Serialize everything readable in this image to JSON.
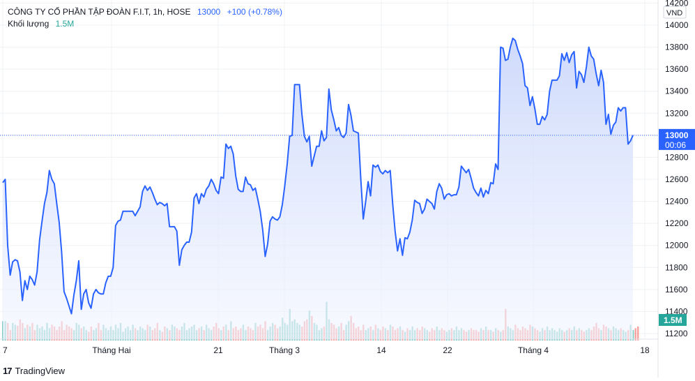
{
  "header": {
    "symbol_title": "CÔNG TY CỔ PHẦN TẬP ĐOÀN F.I.T, 1h, HOSE",
    "last_price": "13000",
    "change": "+100 (+0.78%)",
    "volume_label": "Khối lượng",
    "volume_value": "1.5M"
  },
  "axis": {
    "currency": "VND",
    "price_ticks": [
      "14200",
      "14000",
      "13800",
      "13600",
      "13400",
      "13200",
      "13000",
      "12800",
      "12600",
      "12400",
      "12200",
      "12000",
      "11800",
      "11600",
      "11400",
      "11200"
    ],
    "time_ticks": [
      "7",
      "Tháng Hai",
      "21",
      "Tháng 3",
      "14",
      "22",
      "Tháng 4",
      "18"
    ],
    "last_price_badge": "13000",
    "countdown": "00:06",
    "volume_badge": "1.5M"
  },
  "colors": {
    "line": "#2962ff",
    "area_top": "#c9d6fb",
    "area_bottom": "#f2f5ff",
    "vol_up": "#26a69a",
    "vol_down": "#ef5350",
    "grid": "#eef0f3",
    "badge_price": "#2962ff",
    "badge_volume": "#26a69a"
  },
  "brand": {
    "name": "TradingView"
  },
  "chart_data": {
    "type": "area",
    "ylim": [
      11150,
      14200
    ],
    "price": [
      12570,
      12600,
      12000,
      11730,
      11850,
      11870,
      11860,
      11760,
      11500,
      11680,
      11600,
      11720,
      11690,
      11640,
      11760,
      12050,
      12220,
      12380,
      12480,
      12680,
      12600,
      12560,
      12380,
      12210,
      11940,
      11580,
      11520,
      11450,
      11380,
      11550,
      11680,
      11860,
      11420,
      11560,
      11600,
      11480,
      11430,
      11560,
      11600,
      11570,
      11560,
      11560,
      11660,
      11720,
      11720,
      11800,
      12180,
      12220,
      12230,
      12310,
      12310,
      12310,
      12310,
      12310,
      12270,
      12310,
      12350,
      12490,
      12540,
      12500,
      12530,
      12480,
      12420,
      12370,
      12390,
      12380,
      12360,
      12380,
      12170,
      12170,
      12170,
      12130,
      11820,
      11960,
      12000,
      12030,
      12030,
      12120,
      12430,
      12470,
      12380,
      12470,
      12440,
      12510,
      12540,
      12600,
      12560,
      12500,
      12470,
      12620,
      12610,
      12920,
      12880,
      12900,
      12830,
      12630,
      12510,
      12490,
      12490,
      12620,
      12560,
      12550,
      12500,
      12520,
      12420,
      12310,
      12140,
      11900,
      12010,
      12220,
      12260,
      12240,
      12230,
      12260,
      12370,
      12540,
      12740,
      12990,
      13000,
      13460,
      13460,
      13460,
      13190,
      12990,
      12940,
      12990,
      12720,
      12810,
      12900,
      12900,
      13040,
      12950,
      12980,
      13420,
      13230,
      13140,
      13040,
      13070,
      13000,
      12980,
      13020,
      13280,
      13180,
      13040,
      13030,
      13020,
      12600,
      12240,
      12400,
      12580,
      12450,
      12730,
      12710,
      12730,
      12670,
      12650,
      12680,
      12660,
      12680,
      12380,
      12130,
      11950,
      12060,
      11910,
      12070,
      12060,
      12120,
      12230,
      12410,
      12390,
      12380,
      12290,
      12330,
      12420,
      12400,
      12380,
      12330,
      12490,
      12560,
      12520,
      12420,
      12460,
      12470,
      12450,
      12460,
      12460,
      12530,
      12720,
      12690,
      12660,
      12690,
      12610,
      12520,
      12480,
      12450,
      12520,
      12440,
      12500,
      12470,
      12570,
      12560,
      12740,
      12690,
      13800,
      13790,
      13680,
      13690,
      13800,
      13880,
      13860,
      13780,
      13720,
      13650,
      13450,
      13430,
      13270,
      13350,
      13240,
      13100,
      13100,
      13170,
      13140,
      13190,
      13400,
      13500,
      13500,
      13500,
      13540,
      13740,
      13680,
      13750,
      13660,
      13730,
      13760,
      13430,
      13580,
      13550,
      13480,
      13620,
      13800,
      13720,
      13690,
      13560,
      13450,
      13590,
      13480,
      13100,
      13190,
      13010,
      13090,
      13120,
      13250,
      13220,
      13250,
      13250,
      12920,
      12950,
      13000
    ],
    "volume": [
      0.55,
      0.55,
      0.5,
      0.3,
      0.5,
      0.45,
      0.42,
      0.6,
      0.5,
      0.35,
      0.45,
      0.4,
      0.5,
      0.3,
      0.45,
      0.35,
      0.4,
      0.3,
      0.5,
      0.35,
      0.45,
      0.4,
      0.3,
      0.4,
      0.55,
      0.3,
      0.45,
      0.4,
      0.35,
      0.3,
      0.5,
      0.45,
      0.35,
      0.4,
      0.3,
      0.25,
      0.4,
      0.3,
      0.35,
      0.5,
      0.3,
      0.45,
      0.35,
      0.3,
      0.4,
      0.3,
      0.45,
      0.35,
      0.5,
      0.25,
      0.35,
      0.4,
      0.3,
      0.45,
      0.35,
      0.3,
      0.4,
      0.35,
      0.3,
      0.45,
      0.4,
      0.3,
      0.35,
      0.5,
      0.3,
      0.25,
      0.4,
      0.35,
      0.3,
      0.45,
      0.4,
      0.35,
      0.3,
      0.4,
      0.5,
      0.3,
      0.35,
      0.4,
      0.45,
      0.3,
      0.35,
      0.4,
      0.3,
      0.45,
      0.35,
      0.3,
      0.4,
      0.5,
      0.35,
      0.3,
      0.4,
      0.45,
      0.3,
      0.55,
      0.35,
      0.4,
      0.3,
      0.35,
      0.45,
      0.3,
      0.4,
      0.35,
      0.3,
      0.5,
      0.4,
      0.45,
      0.35,
      0.55,
      0.3,
      0.4,
      0.5,
      0.45,
      0.35,
      0.4,
      0.65,
      0.5,
      0.45,
      0.9,
      0.55,
      0.6,
      0.5,
      0.45,
      0.4,
      0.55,
      0.6,
      0.85,
      0.7,
      0.5,
      0.45,
      0.3,
      0.35,
      0.4,
      1.1,
      0.6,
      0.5,
      0.45,
      0.35,
      0.4,
      0.5,
      0.3,
      0.45,
      0.55,
      0.7,
      0.5,
      0.35,
      0.4,
      0.3,
      0.45,
      0.3,
      0.35,
      0.4,
      0.3,
      0.45,
      0.35,
      0.3,
      0.4,
      0.35,
      0.3,
      0.45,
      0.4,
      0.3,
      0.35,
      0.4,
      0.3,
      0.25,
      0.35,
      0.3,
      0.4,
      0.3,
      0.35,
      0.3,
      0.4,
      0.35,
      0.3,
      0.25,
      0.35,
      0.3,
      0.4,
      0.3,
      0.35,
      0.3,
      0.25,
      0.3,
      0.35,
      0.3,
      0.4,
      0.3,
      0.35,
      0.3,
      0.25,
      0.3,
      0.35,
      0.3,
      0.3,
      0.25,
      0.35,
      0.3,
      0.4,
      0.3,
      0.3,
      0.25,
      0.35,
      0.3,
      0.25,
      0.3,
      0.9,
      0.4,
      0.35,
      0.3,
      0.45,
      0.35,
      0.3,
      0.4,
      0.35,
      0.3,
      0.45,
      0.4,
      0.35,
      0.3,
      0.25,
      0.35,
      0.3,
      0.4,
      0.3,
      0.35,
      0.3,
      0.25,
      0.35,
      0.3,
      0.25,
      0.3,
      0.35,
      0.3,
      0.4,
      0.3,
      0.35,
      0.3,
      0.25,
      0.3,
      0.35,
      0.3,
      0.4,
      0.5,
      0.35,
      0.3,
      0.45,
      0.4,
      0.35,
      0.3,
      0.4,
      0.35,
      0.3,
      0.35,
      0.3,
      0.25,
      0.3,
      0.45,
      0.3,
      0.35,
      0.4
    ],
    "volume_dir": "mixed"
  }
}
